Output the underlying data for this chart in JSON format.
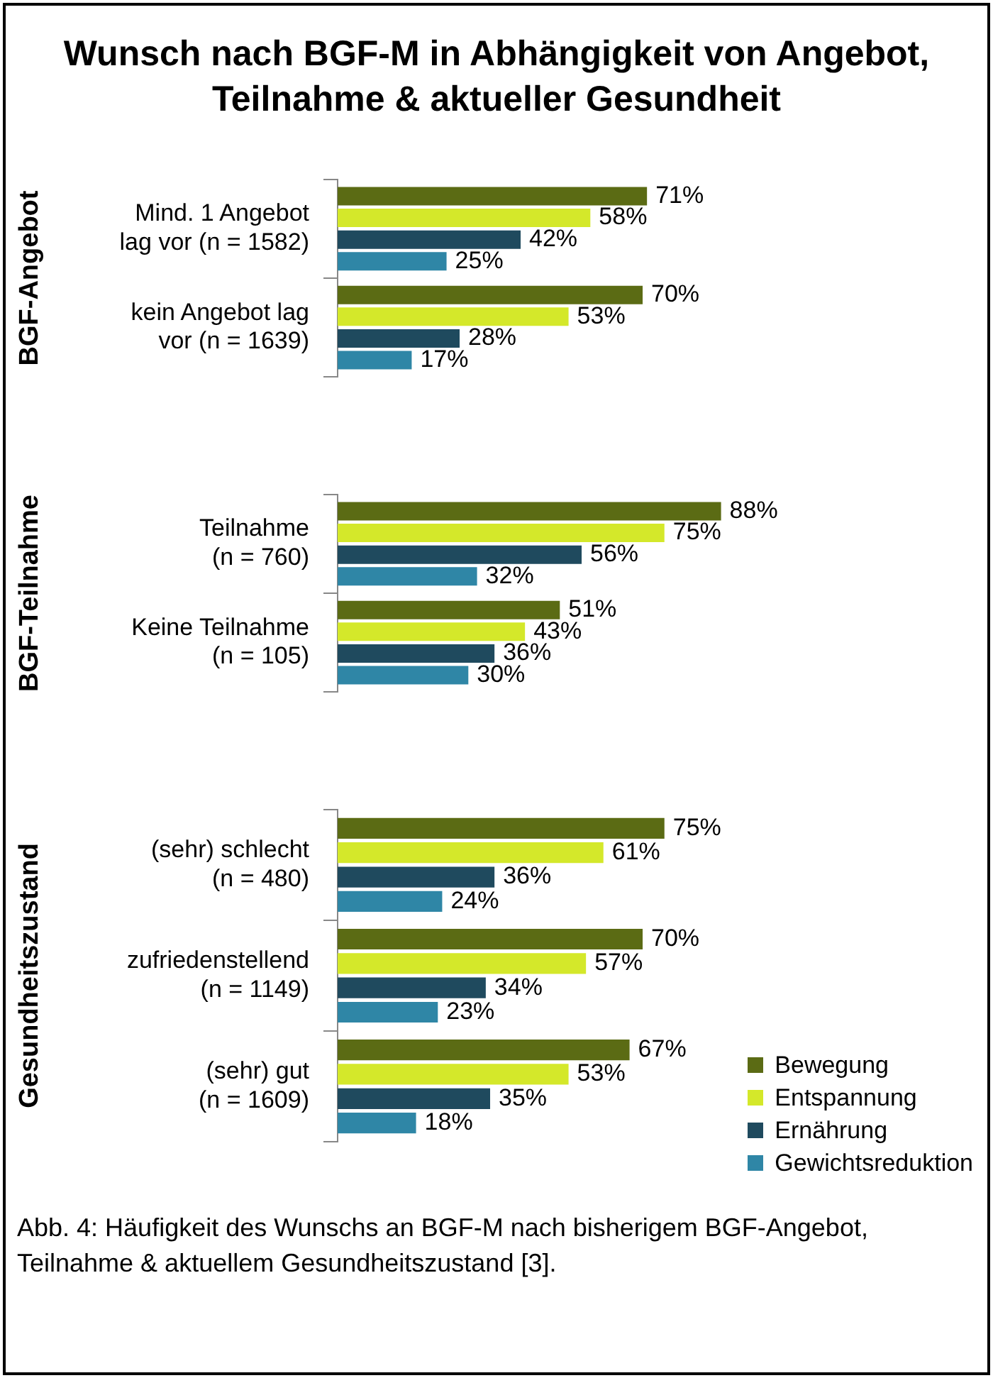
{
  "chart_data": [
    {
      "type": "bar",
      "orientation": "horizontal",
      "tick_labels": "y",
      "title": "Wunsch nach BGF-M in Abhängigkeit von Angebot, Teilnahme & aktueller Gesundheit",
      "ylabel": "BGF-Angebot",
      "categories": [
        "Mind. 1 Angebot\nlag vor (n = 1582)",
        "kein Angebot lag\nvor (n = 1639)"
      ],
      "series": [
        {
          "color": "#5b6b14",
          "values": [
            71,
            70
          ],
          "value_labels": [
            "71%",
            "70%"
          ]
        },
        {
          "color": "#d4e82a",
          "values": [
            58,
            53
          ],
          "value_labels": [
            "58%",
            "53%"
          ]
        },
        {
          "color": "#1f4a5e",
          "values": [
            42,
            28
          ],
          "value_labels": [
            "42%",
            "28%"
          ]
        },
        {
          "color": "#2f86a6",
          "values": [
            25,
            17
          ],
          "value_labels": [
            "25%",
            "17%"
          ]
        }
      ]
    },
    {
      "type": "bar",
      "orientation": "horizontal",
      "tick_labels": "y",
      "ylabel": "BGF-Teilnahme",
      "categories": [
        "Teilnahme\n(n = 760)",
        "Keine Teilnahme\n(n = 105)"
      ],
      "series": [
        {
          "color": "#5b6b14",
          "values": [
            88,
            51
          ],
          "value_labels": [
            "88%",
            "51%"
          ]
        },
        {
          "color": "#d4e82a",
          "values": [
            75,
            43
          ],
          "value_labels": [
            "75%",
            "43%"
          ]
        },
        {
          "color": "#1f4a5e",
          "values": [
            56,
            36
          ],
          "value_labels": [
            "56%",
            "36%"
          ]
        },
        {
          "color": "#2f86a6",
          "values": [
            32,
            30
          ],
          "value_labels": [
            "32%",
            "30%"
          ]
        }
      ]
    },
    {
      "type": "bar",
      "orientation": "horizontal",
      "tick_labels": "y",
      "ylabel": "Gesundheitszustand",
      "legend": "bottom right",
      "annotations": [
        "Abb. 4: Häufigkeit des Wunschs an BGF-M nach bisherigem BGF-Angebot, Teilnahme & aktuellem Gesundheitszustand [3]."
      ],
      "categories": [
        "(sehr) schlecht\n(n = 480)",
        "zufriedenstellend\n(n = 1149)",
        "(sehr) gut\n(n = 1609)"
      ],
      "series": [
        {
          "name": "Bewegung",
          "color": "#5b6b14",
          "values": [
            75,
            70,
            67
          ],
          "value_labels": [
            "75%",
            "70%",
            "67%"
          ]
        },
        {
          "name": "Entspannung",
          "color": "#d4e82a",
          "values": [
            61,
            57,
            53
          ],
          "value_labels": [
            "61%",
            "57%",
            "53%"
          ]
        },
        {
          "name": "Ernährung",
          "color": "#1f4a5e",
          "values": [
            36,
            34,
            35
          ],
          "value_labels": [
            "36%",
            "34%",
            "35%"
          ]
        },
        {
          "name": "Gewichtsreduktion",
          "color": "#2f86a6",
          "values": [
            24,
            23,
            18
          ],
          "value_labels": [
            "24%",
            "23%",
            "18%"
          ]
        }
      ]
    }
  ]
}
